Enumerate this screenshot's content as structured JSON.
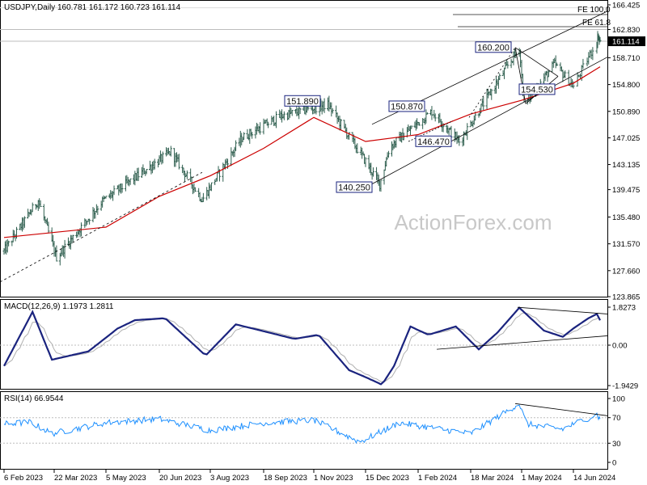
{
  "colors": {
    "background": "#ffffff",
    "bars": "#2f5f4f",
    "ma": "#cc0000",
    "grid": "#bdbdbd",
    "macd_line": "#1a237e",
    "signal_line": "#b0b0b0",
    "rsi_line": "#1e90ff",
    "channel": "#000000",
    "label_border": "#1a237e",
    "current_price_bg": "#000000",
    "watermark": "#c8c8c8"
  },
  "watermark": "ActionForex.com",
  "price_panel": {
    "header": "USDJPY,Daily  160.781 161.172 160.723 161.114",
    "y_ticks": [
      "166.425",
      "162.830",
      "158.710",
      "154.800",
      "150.890",
      "147.025",
      "143.135",
      "139.475",
      "135.480",
      "131.570",
      "127.660",
      "123.865"
    ],
    "current_price": "161.114",
    "fib_labels": [
      "FE 100.0",
      "FE 61.8"
    ],
    "level_labels": [
      {
        "text": "151.890",
        "value": 151.89
      },
      {
        "text": "150.870",
        "value": 150.87
      },
      {
        "text": "160.200",
        "value": 160.2
      },
      {
        "text": "154.530",
        "value": 154.53
      },
      {
        "text": "146.470",
        "value": 146.47
      },
      {
        "text": "140.250",
        "value": 140.25
      }
    ]
  },
  "macd_panel": {
    "header": "MACD(12,26,9) 1.1973 1.2811",
    "y_ticks": [
      "1.8273",
      "0.00",
      "-1.9429"
    ]
  },
  "rsi_panel": {
    "header": "RSI(14) 66.9544",
    "y_ticks": [
      "100",
      "70",
      "30",
      "0"
    ]
  },
  "x_axis": {
    "labels": [
      "6 Feb 2023",
      "22 Mar 2023",
      "5 May 2023",
      "20 Jun 2023",
      "3 Aug 2023",
      "18 Sep 2023",
      "1 Nov 2023",
      "15 Dec 2023",
      "1 Feb 2024",
      "18 Mar 2024",
      "1 May 2024",
      "14 Jun 2024"
    ]
  },
  "chart_data": {
    "type": "candlestick",
    "symbol": "USDJPY",
    "timeframe": "Daily",
    "ohlc_last": {
      "open": 160.781,
      "high": 161.172,
      "low": 160.723,
      "close": 161.114
    },
    "price_path_key_points": [
      {
        "date": "6 Feb 2023",
        "price": 130.5
      },
      {
        "date": "8 Mar 2023",
        "price": 137.9
      },
      {
        "date": "24 Mar 2023",
        "price": 129.6
      },
      {
        "date": "2 May 2023",
        "price": 137.8
      },
      {
        "date": "30 Jun 2023",
        "price": 145.0
      },
      {
        "date": "27 Jul 2023",
        "price": 138.0
      },
      {
        "date": "30 Aug 2023",
        "price": 147.0
      },
      {
        "date": "3 Oct 2023",
        "price": 150.2
      },
      {
        "date": "13 Nov 2023",
        "price": 151.89
      },
      {
        "date": "28 Dec 2023",
        "price": 140.25
      },
      {
        "date": "6 Jan 2024",
        "price": 145.7
      },
      {
        "date": "13 Feb 2024",
        "price": 150.87
      },
      {
        "date": "8 Mar 2024",
        "price": 146.47
      },
      {
        "date": "29 Apr 2024",
        "price": 160.2
      },
      {
        "date": "3 May 2024",
        "price": 151.9
      },
      {
        "date": "29 May 2024",
        "price": 157.8
      },
      {
        "date": "14 Jun 2024",
        "price": 154.53
      },
      {
        "date": "3 Jul 2024",
        "price": 161.9
      },
      {
        "date": "5 Jul 2024",
        "price": 161.114
      }
    ],
    "moving_average_key_points": [
      {
        "date": "6 Feb 2023",
        "price": 132.5
      },
      {
        "date": "5 May 2023",
        "price": 134.0
      },
      {
        "date": "20 Jun 2023",
        "price": 138.5
      },
      {
        "date": "3 Aug 2023",
        "price": 141.5
      },
      {
        "date": "18 Sep 2023",
        "price": 145.5
      },
      {
        "date": "1 Nov 2023",
        "price": 150.0
      },
      {
        "date": "15 Dec 2023",
        "price": 146.5
      },
      {
        "date": "1 Feb 2024",
        "price": 147.5
      },
      {
        "date": "18 Mar 2024",
        "price": 150.5
      },
      {
        "date": "1 May 2024",
        "price": 152.5
      },
      {
        "date": "14 Jun 2024",
        "price": 155.0
      },
      {
        "date": "5 Jul 2024",
        "price": 157.4
      }
    ],
    "macd_key_points": [
      {
        "date": "6 Feb 2023",
        "value": -1.0
      },
      {
        "date": "3 Mar 2023",
        "value": 1.6
      },
      {
        "date": "20 Mar 2023",
        "value": -0.7
      },
      {
        "date": "20 Apr 2023",
        "value": -0.3
      },
      {
        "date": "15 May 2023",
        "value": 0.8
      },
      {
        "date": "30 May 2023",
        "value": 1.2
      },
      {
        "date": "25 Jun 2023",
        "value": 1.3
      },
      {
        "date": "30 Jul 2023",
        "value": -0.5
      },
      {
        "date": "25 Aug 2023",
        "value": 1.0
      },
      {
        "date": "15 Oct 2023",
        "value": 0.3
      },
      {
        "date": "5 Nov 2023",
        "value": 0.5
      },
      {
        "date": "1 Dec 2023",
        "value": -1.2
      },
      {
        "date": "30 Dec 2023",
        "value": -1.9
      },
      {
        "date": "10 Jan 2024",
        "value": -1.0
      },
      {
        "date": "25 Jan 2024",
        "value": 0.9
      },
      {
        "date": "10 Feb 2024",
        "value": 0.5
      },
      {
        "date": "5 Mar 2024",
        "value": 0.9
      },
      {
        "date": "25 Mar 2024",
        "value": -0.2
      },
      {
        "date": "10 Apr 2024",
        "value": 0.6
      },
      {
        "date": "29 Apr 2024",
        "value": 1.8
      },
      {
        "date": "20 May 2024",
        "value": 0.7
      },
      {
        "date": "5 Jun 2024",
        "value": 0.4
      },
      {
        "date": "25 Jun 2024",
        "value": 1.3
      },
      {
        "date": "1 Jul 2024",
        "value": 1.5
      },
      {
        "date": "5 Jul 2024",
        "value": 1.197
      }
    ],
    "rsi_key_points": [
      {
        "date": "6 Feb 2023",
        "value": 60
      },
      {
        "date": "1 Mar 2023",
        "value": 63
      },
      {
        "date": "20 Mar 2023",
        "value": 45
      },
      {
        "date": "5 May 2023",
        "value": 62
      },
      {
        "date": "20 Jun 2023",
        "value": 68
      },
      {
        "date": "3 Aug 2023",
        "value": 50
      },
      {
        "date": "18 Sep 2023",
        "value": 62
      },
      {
        "date": "1 Nov 2023",
        "value": 66
      },
      {
        "date": "10 Dec 2023",
        "value": 32
      },
      {
        "date": "15 Jan 2024",
        "value": 62
      },
      {
        "date": "18 Mar 2024",
        "value": 45
      },
      {
        "date": "29 Apr 2024",
        "value": 92
      },
      {
        "date": "5 May 2024",
        "value": 60
      },
      {
        "date": "5 Jun 2024",
        "value": 52
      },
      {
        "date": "1 Jul 2024",
        "value": 75
      },
      {
        "date": "5 Jul 2024",
        "value": 66.95
      }
    ],
    "macd_values": {
      "macd": 1.1973,
      "signal": 1.2811
    },
    "rsi_value": 66.9544
  }
}
